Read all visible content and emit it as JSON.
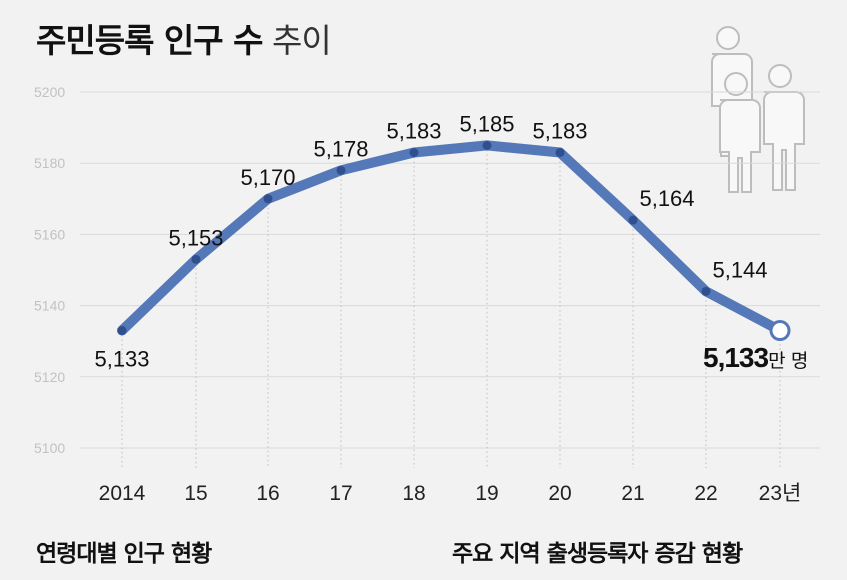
{
  "title": {
    "bold": "주민등록 인구 수",
    "light": "추이"
  },
  "chart_data": {
    "type": "line",
    "categories": [
      "2014",
      "15",
      "16",
      "17",
      "18",
      "19",
      "20",
      "21",
      "22",
      "23년"
    ],
    "series": [
      {
        "values": [
          5133,
          5153,
          5170,
          5178,
          5183,
          5185,
          5183,
          5164,
          5144,
          5133
        ]
      }
    ],
    "data_labels": [
      "5,133",
      "5,153",
      "5,170",
      "5,178",
      "5,183",
      "5,185",
      "5,183",
      "5,164",
      "5,144"
    ],
    "final_label": {
      "value": "5,133",
      "unit": "만 명"
    },
    "y_ticks": [
      5100,
      5120,
      5140,
      5160,
      5180,
      5200
    ],
    "ylim": [
      5100,
      5200
    ],
    "grid": true,
    "line_color": "#5578b8",
    "marker_color": "#2f4f8f"
  },
  "footer": {
    "left": "연령대별 인구 현황",
    "right": "주요 지역 출생등록자 증감 현황"
  }
}
